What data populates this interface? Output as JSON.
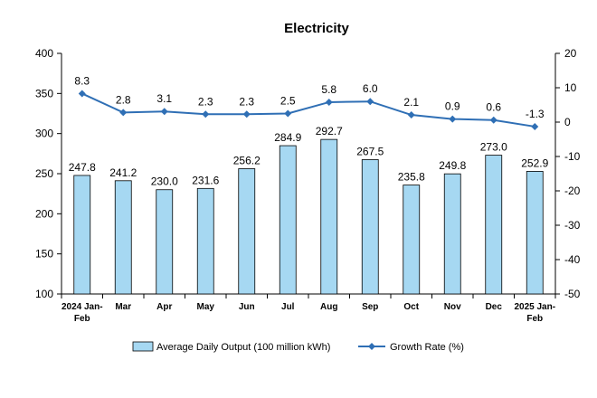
{
  "chart_data": {
    "type": "bar+line",
    "title": "Electricity",
    "categories": [
      "2024 Jan-Feb",
      "Mar",
      "Apr",
      "May",
      "Jun",
      "Jul",
      "Aug",
      "Sep",
      "Oct",
      "Nov",
      "Dec",
      "2025 Jan-Feb"
    ],
    "category_lines": [
      [
        "2024 Jan-",
        "Feb"
      ],
      [
        "Mar"
      ],
      [
        "Apr"
      ],
      [
        "May"
      ],
      [
        "Jun"
      ],
      [
        "Jul"
      ],
      [
        "Aug"
      ],
      [
        "Sep"
      ],
      [
        "Oct"
      ],
      [
        "Nov"
      ],
      [
        "Dec"
      ],
      [
        "2025 Jan-",
        "Feb"
      ]
    ],
    "series": [
      {
        "name": "Average Daily Output (100 million kWh)",
        "type": "bar",
        "axis": "left",
        "color": "#a6d8f2",
        "values": [
          247.8,
          241.2,
          230.0,
          231.6,
          256.2,
          284.9,
          292.7,
          267.5,
          235.8,
          249.8,
          273.0,
          252.9
        ],
        "labels": [
          "247.8",
          "241.2",
          "230.0",
          "231.6",
          "256.2",
          "284.9",
          "292.7",
          "267.5",
          "235.8",
          "249.8",
          "273.0",
          "252.9"
        ]
      },
      {
        "name": "Growth Rate (%)",
        "type": "line",
        "axis": "right",
        "color": "#2f6fb5",
        "values": [
          8.3,
          2.8,
          3.1,
          2.3,
          2.3,
          2.5,
          5.8,
          6.0,
          2.1,
          0.9,
          0.6,
          -1.3
        ],
        "labels": [
          "8.3",
          "2.8",
          "3.1",
          "2.3",
          "2.3",
          "2.5",
          "5.8",
          "6.0",
          "2.1",
          "0.9",
          "0.6",
          "-1.3"
        ]
      }
    ],
    "y_left": {
      "lim": [
        100,
        400
      ],
      "ticks": [
        "100",
        "150",
        "200",
        "250",
        "300",
        "350",
        "400"
      ]
    },
    "y_right": {
      "lim": [
        -50,
        20
      ],
      "ticks": [
        "-50",
        "-40",
        "-30",
        "-20",
        "-10",
        "0",
        "10",
        "20"
      ]
    },
    "grid": false,
    "legend_position": "bottom"
  }
}
